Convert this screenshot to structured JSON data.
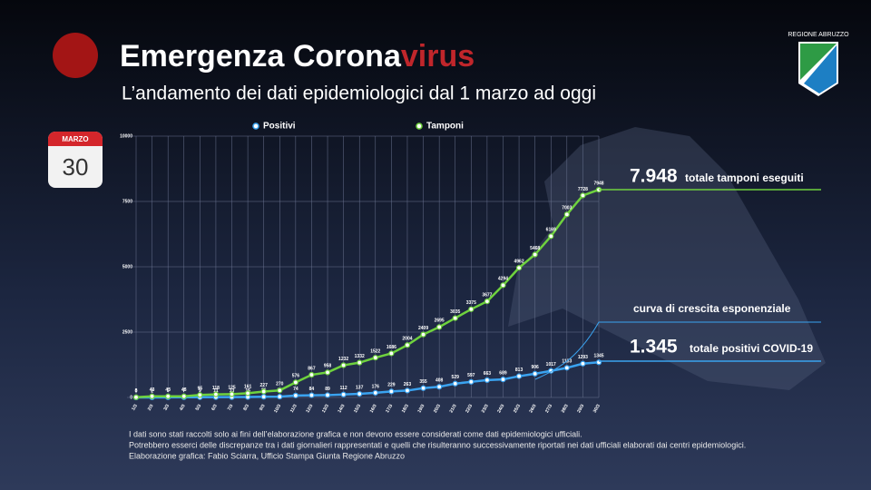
{
  "header": {
    "title_main": "Emergenza Corona",
    "title_accent": "virus",
    "subtitle": "L’andamento dei dati epidemiologici dal 1 marzo ad oggi",
    "logo": "REGIONE ABRUZZO"
  },
  "calendar": {
    "month": "MARZO",
    "day": "30"
  },
  "chart_data": {
    "type": "line",
    "categories": [
      "1/3",
      "2/3",
      "3/3",
      "4/3",
      "5/3",
      "6/3",
      "7/3",
      "8/3",
      "9/3",
      "10/3",
      "11/3",
      "12/3",
      "13/3",
      "14/3",
      "15/3",
      "16/3",
      "17/3",
      "18/3",
      "19/3",
      "20/3",
      "21/3",
      "22/3",
      "23/3",
      "24/3",
      "25/3",
      "26/3",
      "27/3",
      "28/3",
      "29/3",
      "30/3"
    ],
    "series": [
      {
        "name": "Positivi",
        "color": "#3aa3f0",
        "values": [
          0,
          2,
          5,
          7,
          9,
          11,
          13,
          16,
          26,
          30,
          74,
          84,
          89,
          112,
          137,
          176,
          229,
          263,
          355,
          408,
          529,
          597,
          663,
          689,
          813,
          906,
          1017,
          1133,
          1293,
          1345
        ]
      },
      {
        "name": "Tamponi",
        "color": "#6fd23e",
        "values": [
          8,
          43,
          43,
          43,
          95,
          118,
          125,
          161,
          227,
          270,
          576,
          867,
          958,
          1232,
          1332,
          1522,
          1686,
          2004,
          2409,
          2695,
          3035,
          3375,
          3677,
          4294,
          4962,
          5468,
          6169,
          7003,
          7728,
          7948
        ]
      }
    ],
    "ylim": [
      0,
      10000
    ],
    "yticks": [
      0,
      2500,
      5000,
      7500,
      10000
    ],
    "grid": true,
    "annotations": [
      {
        "number": "7.948",
        "text": "totale tamponi eseguiti"
      },
      {
        "text": "curva di crescita esponenziale"
      },
      {
        "number": "1.345",
        "text": "totale positivi COVID-19"
      }
    ]
  },
  "notes": [
    "I dati sono stati raccolti solo ai fini dell’elaborazione grafica e non devono essere considerati come dati epidemiologici ufficiali.",
    "Potrebbero esserci delle discrepanze tra i dati giornalieri rappresentati e quelli che risulteranno successivamente riportati nei dati ufficiali elaborati dai centri epidemiologici.",
    "Elaborazione grafica: Fabio Sciarra, Ufficio Stampa Giunta Regione Abruzzo"
  ]
}
